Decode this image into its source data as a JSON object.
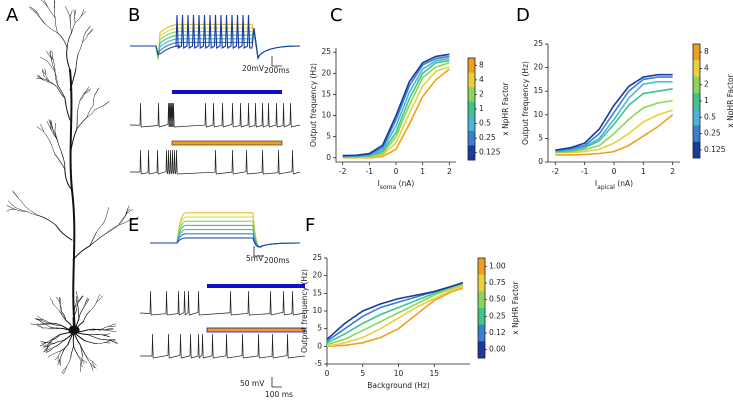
{
  "panels": [
    "A",
    "B",
    "C",
    "D",
    "E",
    "F"
  ],
  "scale_bars": [
    "20mV",
    "200ms",
    "5mV",
    "200ms",
    "50 mV",
    "100 ms"
  ],
  "chart_data": [
    {
      "type": "line",
      "y_label": "Output frequency (Hz)",
      "x_label": [
        "I",
        "soma",
        " (nA)"
      ],
      "x": [
        -2,
        -1.5,
        -1,
        -0.5,
        0,
        0.5,
        1,
        1.5,
        2
      ],
      "xlim": [
        -2.25,
        2.25
      ],
      "xticks": [
        -2,
        -1,
        0,
        1,
        2
      ],
      "ylim": [
        -1,
        26
      ],
      "yticks": [
        0,
        5,
        10,
        15,
        20,
        25
      ],
      "series": [
        {
          "color": "#f0a020",
          "values": [
            0,
            0,
            0,
            0.3,
            2,
            8,
            14.5,
            18.5,
            21
          ]
        },
        {
          "color": "#e8d23a",
          "values": [
            0,
            0,
            0.2,
            0.7,
            3.5,
            10.5,
            17,
            20.5,
            21.5
          ]
        },
        {
          "color": "#8ad65a",
          "values": [
            0.2,
            0.2,
            0.4,
            1,
            5,
            12.5,
            19,
            21.5,
            22.5
          ]
        },
        {
          "color": "#3fc48a",
          "values": [
            0.3,
            0.3,
            0.5,
            1.5,
            6,
            14,
            20,
            22.5,
            23
          ]
        },
        {
          "color": "#4ab5d8",
          "values": [
            0.3,
            0.4,
            0.6,
            2,
            7.5,
            15.5,
            21,
            23,
            23.5
          ]
        },
        {
          "color": "#3a7fd0",
          "values": [
            0.5,
            0.5,
            0.8,
            2.5,
            9,
            17,
            22,
            23.5,
            24
          ]
        },
        {
          "color": "#1a3a9e",
          "values": [
            0.5,
            0.6,
            1,
            3,
            10,
            18,
            22.5,
            24,
            24.5
          ]
        }
      ],
      "colorbar": {
        "label": "x NpHR Factor",
        "ticks": [
          8,
          4,
          2,
          1,
          0.5,
          0.25,
          0.125
        ]
      }
    },
    {
      "type": "line",
      "y_label": "Output frequency (Hz)",
      "x_label": [
        "I",
        "apical",
        " (nA)"
      ],
      "x": [
        -2,
        -1.5,
        -1,
        -0.5,
        0,
        0.5,
        1,
        1.5,
        2
      ],
      "xlim": [
        -2.25,
        2.25
      ],
      "xticks": [
        -2,
        -1,
        0,
        1,
        2
      ],
      "ylim": [
        0,
        25
      ],
      "yticks": [
        0,
        5,
        10,
        15,
        20,
        25
      ],
      "series": [
        {
          "color": "#f0a020",
          "values": [
            1.5,
            1.5,
            1.6,
            1.8,
            2.2,
            3.5,
            5.5,
            7.5,
            10
          ]
        },
        {
          "color": "#e8d23a",
          "values": [
            2,
            2,
            2.2,
            2.7,
            4,
            6,
            8.5,
            10,
            11
          ]
        },
        {
          "color": "#8ad65a",
          "values": [
            2,
            2.2,
            2.6,
            3.5,
            6,
            9,
            11.5,
            12.5,
            13
          ]
        },
        {
          "color": "#3fc48a",
          "values": [
            2.2,
            2.4,
            3,
            4.5,
            8,
            12,
            14.5,
            15,
            15.5
          ]
        },
        {
          "color": "#4ab5d8",
          "values": [
            2.3,
            2.5,
            3.2,
            5,
            9,
            13.5,
            16.5,
            17,
            17
          ]
        },
        {
          "color": "#3a7fd0",
          "values": [
            2.5,
            2.8,
            3.5,
            6,
            10.5,
            15,
            17.5,
            18,
            18
          ]
        },
        {
          "color": "#1a3a9e",
          "values": [
            2.5,
            3,
            4,
            7,
            12,
            16,
            18,
            18.5,
            18.5
          ]
        }
      ],
      "colorbar": {
        "label": "x NpHR Factor",
        "ticks": [
          8,
          4,
          2,
          1,
          0.5,
          0.25,
          0.125
        ]
      }
    },
    {
      "type": "line",
      "y_label": "Output frequency (Hz)",
      "x_label": [
        "Background (Hz)"
      ],
      "x": [
        0,
        2.5,
        5,
        7.5,
        10,
        12.5,
        15,
        17.5,
        19
      ],
      "xlim": [
        0,
        20
      ],
      "xticks": [
        0,
        5,
        10,
        15
      ],
      "ylim": [
        -5,
        25
      ],
      "yticks": [
        -5,
        0,
        5,
        10,
        15,
        20,
        25
      ],
      "series": [
        {
          "color": "#f0a020",
          "values": [
            0,
            0.3,
            1,
            2.5,
            5,
            9,
            13,
            15.5,
            16.5
          ]
        },
        {
          "color": "#e8d23a",
          "values": [
            0,
            1,
            2.5,
            5,
            8,
            11,
            13.5,
            16,
            17
          ]
        },
        {
          "color": "#8ad65a",
          "values": [
            0.5,
            2,
            4.5,
            7,
            9.5,
            12,
            14.5,
            16.5,
            17.5
          ]
        },
        {
          "color": "#3fc48a",
          "values": [
            1,
            3.5,
            6.5,
            9,
            11,
            13,
            15,
            17,
            18
          ]
        },
        {
          "color": "#3a7fd0",
          "values": [
            1.5,
            5,
            8.5,
            11,
            12.5,
            14,
            15.5,
            17,
            18
          ]
        },
        {
          "color": "#1a3a9e",
          "values": [
            2,
            6.5,
            10,
            12,
            13.5,
            14.5,
            15.5,
            17,
            18
          ]
        }
      ],
      "colorbar": {
        "label": "x NpHR Factor",
        "ticks": [
          {
            "value": 1,
            "label": "1.00"
          },
          {
            "value": 0.75,
            "label": "0.75"
          },
          {
            "value": 0.5,
            "label": "0.50"
          },
          {
            "value": 0.25,
            "label": "0.25"
          },
          {
            "value": 0.12,
            "label": "0.12"
          },
          {
            "value": 0,
            "label": "0.00"
          }
        ]
      }
    }
  ]
}
